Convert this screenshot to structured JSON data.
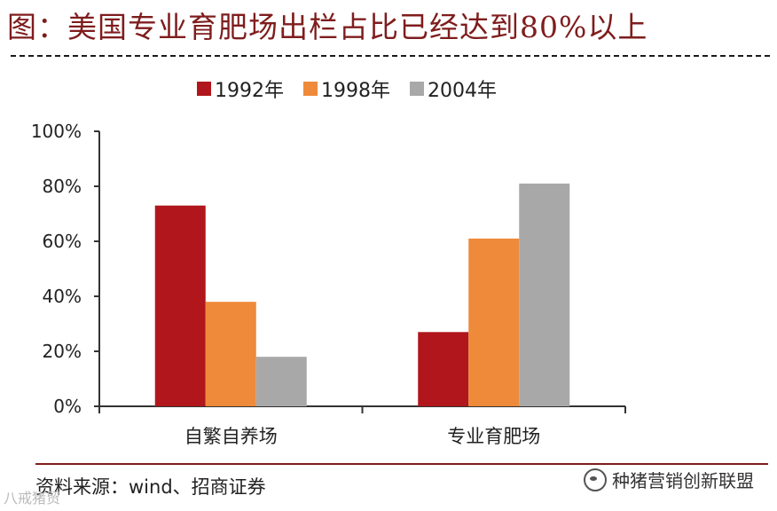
{
  "title": "图：美国专业育肥场出栏占比已经达到80%以上",
  "legend": [
    {
      "name": "1992年",
      "color": "#b0161b"
    },
    {
      "name": "1998年",
      "color": "#ee8a3a"
    },
    {
      "name": "2004年",
      "color": "#a8a8a8"
    }
  ],
  "source": "资料来源：wind、招商证券",
  "watermark": "种猪营销创新联盟",
  "corner_mark": "八戒猪贸",
  "chart_data": {
    "type": "bar",
    "categories": [
      "自繁自养场",
      "专业育肥场"
    ],
    "series": [
      {
        "name": "1992年",
        "values": [
          73,
          27
        ]
      },
      {
        "name": "1998年",
        "values": [
          38,
          61
        ]
      },
      {
        "name": "2004年",
        "values": [
          18,
          81
        ]
      }
    ],
    "ylim": [
      0,
      100
    ],
    "yticks": [
      "0%",
      "20%",
      "40%",
      "60%",
      "80%",
      "100%"
    ],
    "ytick_values": [
      0,
      20,
      40,
      60,
      80,
      100
    ],
    "grid": false,
    "legend_position": "top"
  }
}
